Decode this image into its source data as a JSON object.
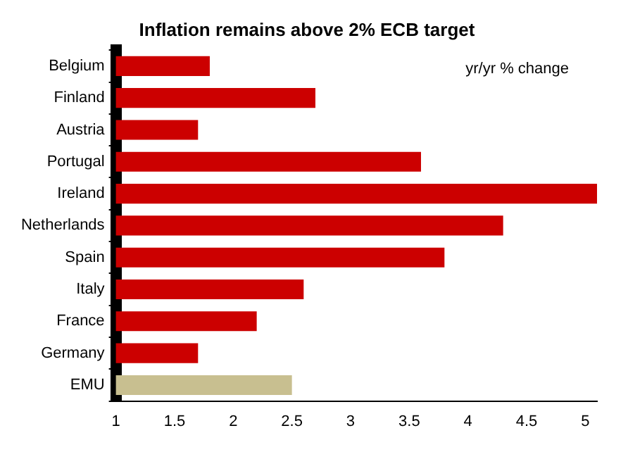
{
  "chart_data": {
    "type": "bar",
    "orientation": "horizontal",
    "title": "Inflation remains above 2% ECB target",
    "categories": [
      "Belgium",
      "Finland",
      "Austria",
      "Portugal",
      "Ireland",
      "Netherlands",
      "Spain",
      "Italy",
      "France",
      "Germany",
      "EMU"
    ],
    "values": [
      1.8,
      2.7,
      1.7,
      3.6,
      5.1,
      4.3,
      3.8,
      2.6,
      2.2,
      1.7,
      2.5
    ],
    "colors": [
      "#cc0000",
      "#cc0000",
      "#cc0000",
      "#cc0000",
      "#cc0000",
      "#cc0000",
      "#cc0000",
      "#cc0000",
      "#cc0000",
      "#cc0000",
      "#c8bf90"
    ],
    "xlim": [
      1,
      5.1
    ],
    "xticks": [
      1,
      1.5,
      2,
      2.5,
      3,
      3.5,
      4,
      4.5,
      5
    ],
    "annotations": [
      "yr/yr % change"
    ],
    "grid": false,
    "legend": false
  }
}
